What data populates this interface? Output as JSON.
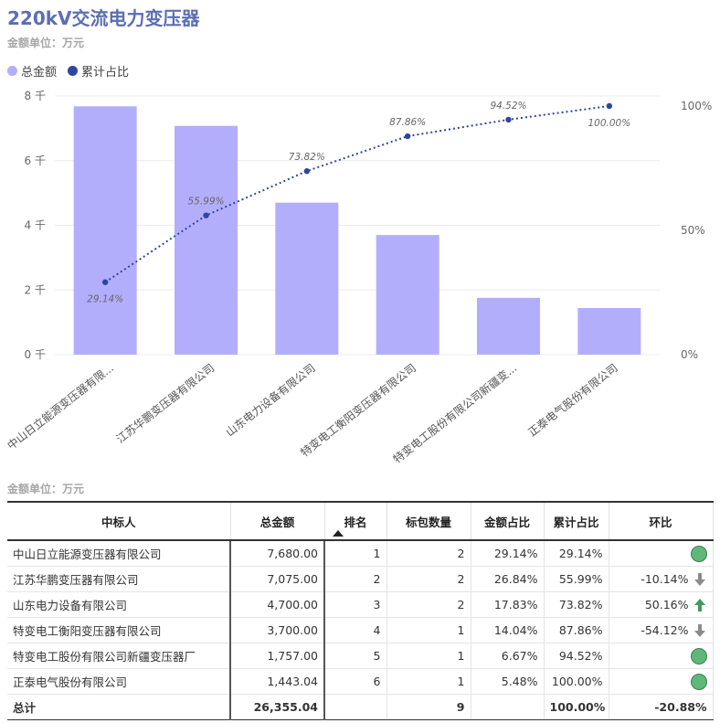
{
  "title": "220kV交流电力变压器",
  "unit_label_top": "金额单位：万元",
  "unit_label_table": "金额单位：万元",
  "legend": [
    {
      "label": "总金额",
      "color": "#b3aefc"
    },
    {
      "label": "累计占比",
      "color": "#2f45a3"
    }
  ],
  "chart_data": {
    "type": "bar",
    "categories": [
      "中山日立能源变压器有限...",
      "江苏华鹏变压器有限公司",
      "山东电力设备有限公司",
      "特变电工衡阳变压器有限公司",
      "特变电工股份有限公司新疆变...",
      "正泰电气股份有限公司"
    ],
    "series": [
      {
        "name": "总金额",
        "type": "bar",
        "values": [
          7680,
          7075,
          4700,
          3700,
          1757,
          1443.04
        ],
        "color": "#b3aefc"
      },
      {
        "name": "累计占比",
        "type": "line",
        "values": [
          29.14,
          55.99,
          73.82,
          87.86,
          94.52,
          100.0
        ],
        "color": "#2f45a3"
      }
    ],
    "line_labels": [
      "29.14%",
      "55.99%",
      "73.82%",
      "87.86%",
      "94.52%",
      "100.00%"
    ],
    "y_left": {
      "ticks": [
        "0 千",
        "2 千",
        "4 千",
        "6 千",
        "8 千"
      ],
      "range": [
        0,
        8000
      ]
    },
    "y_right": {
      "ticks": [
        "0%",
        "50%",
        "100%"
      ],
      "range": [
        0,
        100
      ]
    },
    "grid": true,
    "legend_position": "top-left"
  },
  "table": {
    "headers": [
      "中标人",
      "总金额",
      "排名",
      "标包数量",
      "金额占比",
      "累计占比",
      "环比"
    ],
    "rows": [
      {
        "name": "中山日立能源变压器有限公司",
        "amount": "7,680.00",
        "rank": "1",
        "packages": "2",
        "share": "29.14%",
        "cum": "29.14%",
        "mom": "",
        "mom_icon": "circle-icon"
      },
      {
        "name": "江苏华鹏变压器有限公司",
        "amount": "7,075.00",
        "rank": "2",
        "packages": "2",
        "share": "26.84%",
        "cum": "55.99%",
        "mom": "-10.14%",
        "mom_icon": "arrow-down-icon"
      },
      {
        "name": "山东电力设备有限公司",
        "amount": "4,700.00",
        "rank": "3",
        "packages": "2",
        "share": "17.83%",
        "cum": "73.82%",
        "mom": "50.16%",
        "mom_icon": "arrow-up-icon"
      },
      {
        "name": "特变电工衡阳变压器有限公司",
        "amount": "3,700.00",
        "rank": "4",
        "packages": "1",
        "share": "14.04%",
        "cum": "87.86%",
        "mom": "-54.12%",
        "mom_icon": "arrow-down-icon"
      },
      {
        "name": "特变电工股份有限公司新疆变压器厂",
        "amount": "1,757.00",
        "rank": "5",
        "packages": "1",
        "share": "6.67%",
        "cum": "94.52%",
        "mom": "",
        "mom_icon": "circle-icon"
      },
      {
        "name": "正泰电气股份有限公司",
        "amount": "1,443.04",
        "rank": "6",
        "packages": "1",
        "share": "5.48%",
        "cum": "100.00%",
        "mom": "",
        "mom_icon": "circle-icon"
      }
    ],
    "total": {
      "label": "总计",
      "amount": "26,355.04",
      "rank": "",
      "packages": "9",
      "share": "",
      "cum": "100.00%",
      "mom": "-20.88%"
    }
  },
  "colors": {
    "up": "#3f9a5b",
    "down": "#8c8c8c",
    "circle": "#5fb87a"
  }
}
